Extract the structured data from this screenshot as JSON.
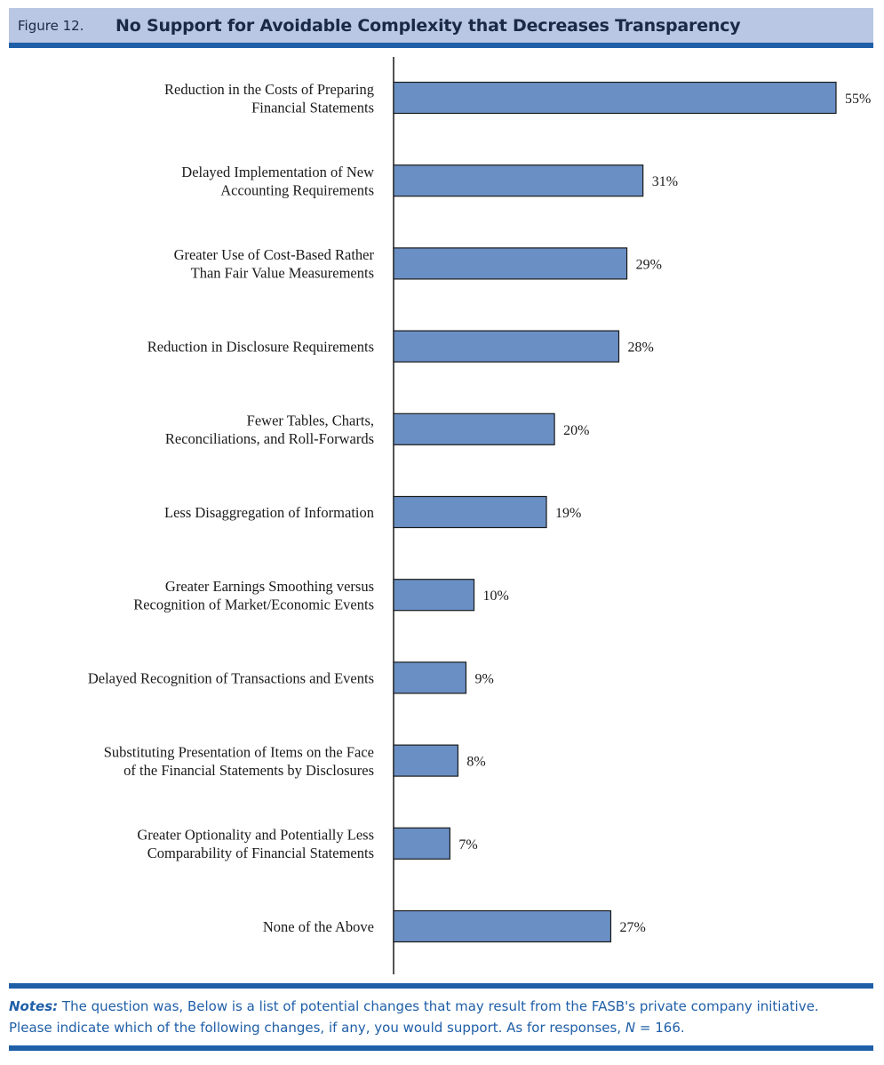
{
  "figure": {
    "number": "Figure 12.",
    "title": "No Support for Avoidable Complexity that Decreases Transparency"
  },
  "notes": {
    "label": "Notes:",
    "line1": "The question was, Below is a list of potential changes that may result from the FASB's private company initiative.",
    "line2_prefix": "Please indicate which of the following changes, if any, you would support. As for responses,",
    "n_symbol": "N",
    "n_value": "= 166."
  },
  "colors": {
    "bar": "#6a8fc4",
    "bar_stroke": "#1a1a1a",
    "accent": "#1f5fa8"
  },
  "chart_data": {
    "type": "bar",
    "orientation": "horizontal",
    "title": "No Support for Avoidable Complexity that Decreases Transparency",
    "categories": [
      [
        "Reduction in the Costs of Preparing",
        "Financial Statements"
      ],
      [
        "Delayed Implementation of New",
        "Accounting Requirements"
      ],
      [
        "Greater Use of Cost-Based Rather",
        "Than Fair Value Measurements"
      ],
      [
        "Reduction in Disclosure Requirements"
      ],
      [
        "Fewer Tables, Charts,",
        "Reconciliations, and Roll-Forwards"
      ],
      [
        "Less Disaggregation of Information"
      ],
      [
        "Greater Earnings Smoothing versus",
        "Recognition of Market/Economic Events"
      ],
      [
        "Delayed Recognition of Transactions and Events"
      ],
      [
        "Substituting Presentation of Items on the Face",
        "of the Financial Statements by Disclosures"
      ],
      [
        "Greater Optionality and Potentially Less",
        "Comparability of Financial Statements"
      ],
      [
        "None of the Above"
      ]
    ],
    "values": [
      55,
      31,
      29,
      28,
      20,
      19,
      10,
      9,
      8,
      7,
      27
    ],
    "value_labels": [
      "55%",
      "31%",
      "29%",
      "28%",
      "20%",
      "19%",
      "10%",
      "9%",
      "8%",
      "7%",
      "27%"
    ],
    "xlim": [
      0,
      55
    ],
    "unit": "%",
    "xlabel": "",
    "ylabel": "",
    "grid": false,
    "legend": "none"
  }
}
